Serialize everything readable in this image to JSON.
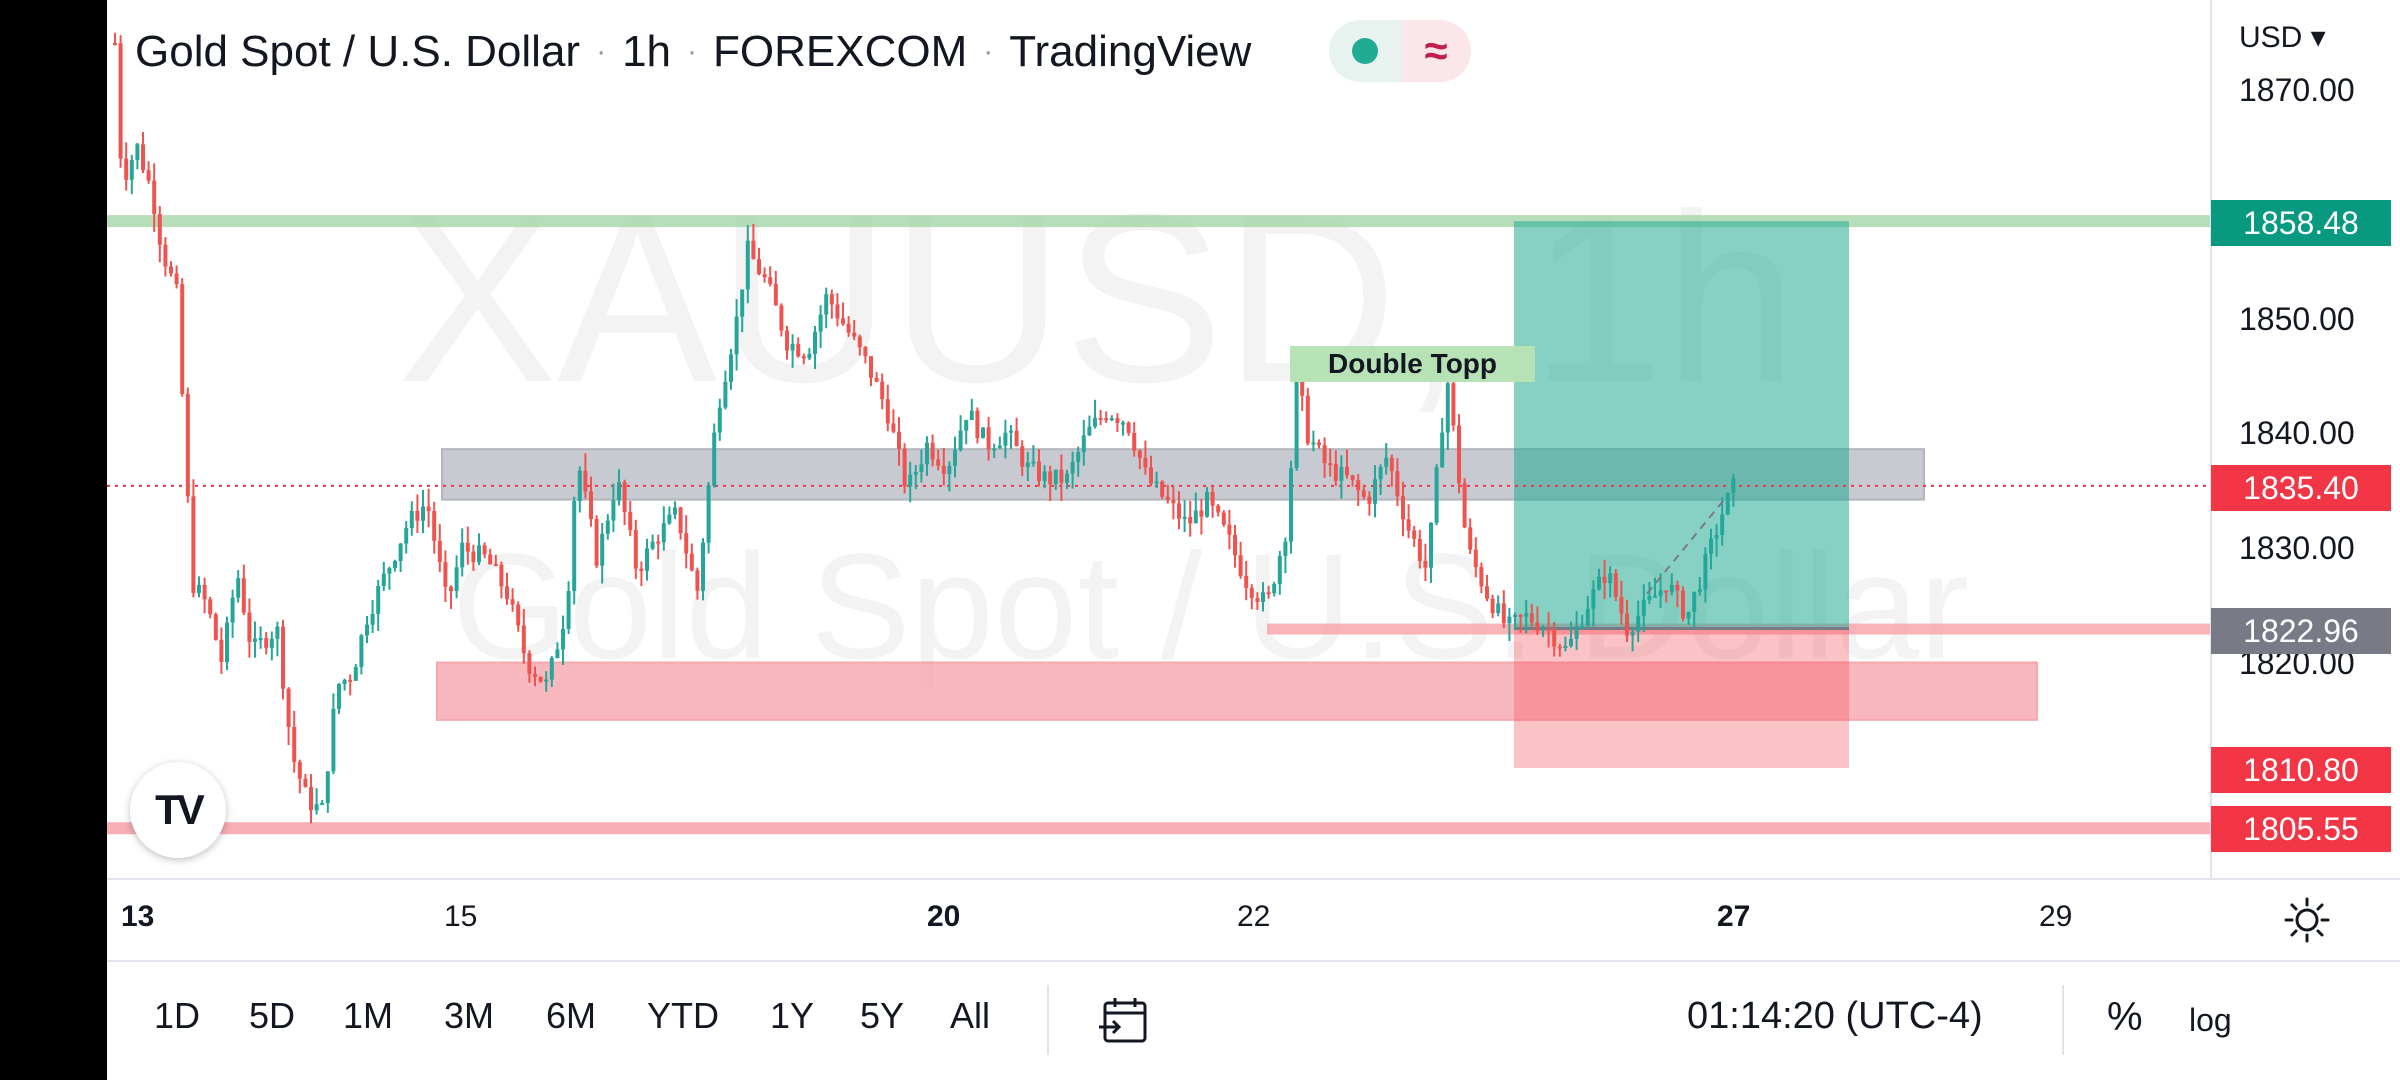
{
  "header": {
    "symbol": "Gold Spot / U.S. Dollar",
    "interval": "1h",
    "exchange": "FOREXCOM",
    "platform": "TradingView",
    "separator": "·"
  },
  "status": {
    "wave_glyph": "≈"
  },
  "watermark": {
    "line1": "XAUUSD, 1h",
    "line2": "Gold Spot / U.S. Dollar"
  },
  "price_axis": {
    "currency": "USD ▾",
    "labels": [
      "1870.00",
      "1850.00",
      "1840.00",
      "1830.00",
      "1820.00"
    ],
    "tags": [
      {
        "value": "1858.48",
        "color": "#089981"
      },
      {
        "value": "1835.40",
        "color": "#f23645"
      },
      {
        "value": "1822.96",
        "color": "#787b86"
      },
      {
        "value": "1810.80",
        "color": "#f23645"
      },
      {
        "value": "1805.55",
        "color": "#f23645"
      }
    ]
  },
  "time_axis": {
    "labels": [
      "13",
      "15",
      "20",
      "22",
      "27",
      "29"
    ]
  },
  "annotation": {
    "label": "Double Topp"
  },
  "toolbar": {
    "ranges": [
      "1D",
      "5D",
      "1M",
      "3M",
      "6M",
      "YTD",
      "1Y",
      "5Y",
      "All"
    ],
    "clock": "01:14:20 (UTC-4)",
    "percent": "%",
    "log": "log"
  },
  "logo": {
    "text": "TV"
  },
  "colors": {
    "up": "#26a69a",
    "down": "#ef5350",
    "target_zone": "#22ab94",
    "stop_zone": "#f7525f"
  }
}
